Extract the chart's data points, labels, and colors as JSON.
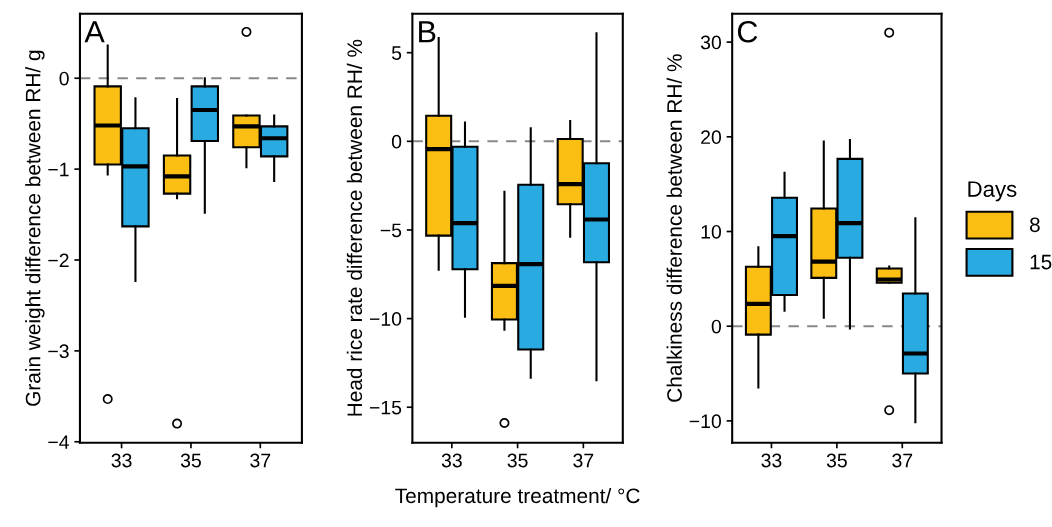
{
  "chart_data": [
    {
      "type": "box",
      "categories": [
        "33",
        "35",
        "37"
      ],
      "ylabel": "Grain weight difference between RH/ g",
      "ylim": [
        -4.01,
        0.71
      ],
      "yticks": [
        -4,
        -3,
        -2,
        -1,
        0
      ],
      "grid": false,
      "annotations": [
        "A"
      ],
      "ref_lines": [
        {
          "axis": "y",
          "value": 0,
          "color": "#888888",
          "line_style": "dashed"
        }
      ],
      "series": [
        {
          "color": "#fbbf13",
          "boxes": [
            {
              "low": -1.06,
              "q1": -0.95,
              "median": -0.52,
              "q3": -0.09,
              "high": 0.36,
              "outliers": [
                -3.53
              ]
            },
            {
              "low": -1.32,
              "q1": -1.27,
              "median": -1.08,
              "q3": -0.85,
              "high": -0.23,
              "outliers": [
                -3.8
              ]
            },
            {
              "low": -0.98,
              "q1": -0.76,
              "median": -0.53,
              "q3": -0.41,
              "high": -0.41,
              "outliers": [
                0.51
              ]
            }
          ]
        },
        {
          "color": "#29abe2",
          "boxes": [
            {
              "low": -2.23,
              "q1": -1.63,
              "median": -0.97,
              "q3": -0.55,
              "high": -0.22
            },
            {
              "low": -1.48,
              "q1": -0.69,
              "median": -0.35,
              "q3": -0.09,
              "high": 0.0
            },
            {
              "low": -1.13,
              "q1": -0.86,
              "median": -0.66,
              "q3": -0.53,
              "high": -0.41
            }
          ]
        }
      ]
    },
    {
      "type": "box",
      "categories": [
        "33",
        "35",
        "37"
      ],
      "xlabel": "Temperature treatment/ °C",
      "ylabel": "Head rice rate difference between RH/ %",
      "ylim": [
        -17,
        7.2
      ],
      "yticks": [
        -15,
        -10,
        -5,
        0,
        5
      ],
      "grid": false,
      "annotations": [
        "B"
      ],
      "ref_lines": [
        {
          "axis": "y",
          "value": 0,
          "color": "#888888",
          "line_style": "dashed"
        }
      ],
      "series": [
        {
          "color": "#fbbf13",
          "boxes": [
            {
              "low": -7.24,
              "q1": -5.32,
              "median": -0.44,
              "q3": 1.44,
              "high": 5.83
            },
            {
              "low": -10.62,
              "q1": -10.05,
              "median": -8.15,
              "q3": -6.87,
              "high": -2.85,
              "outliers": [
                -15.89
              ]
            },
            {
              "low": -5.38,
              "q1": -3.55,
              "median": -2.41,
              "q3": 0.13,
              "high": 1.15
            }
          ]
        },
        {
          "color": "#29abe2",
          "boxes": [
            {
              "low": -9.89,
              "q1": -7.22,
              "median": -4.61,
              "q3": -0.31,
              "high": 1.06
            },
            {
              "low": -13.33,
              "q1": -11.74,
              "median": -6.93,
              "q3": -2.45,
              "high": 0.73
            },
            {
              "low": -13.47,
              "q1": -6.82,
              "median": -4.41,
              "q3": -1.24,
              "high": 6.1
            }
          ]
        }
      ]
    },
    {
      "type": "box",
      "categories": [
        "33",
        "35",
        "37"
      ],
      "ylabel": "Chalkiness difference between RH/ %",
      "ylim": [
        -12.3,
        33.0
      ],
      "yticks": [
        -10,
        0,
        10,
        20,
        30
      ],
      "grid": false,
      "annotations": [
        "C"
      ],
      "legend": "right",
      "legend_title": "Days",
      "ref_lines": [
        {
          "axis": "y",
          "value": 0,
          "color": "#888888",
          "line_style": "dashed"
        }
      ],
      "series": [
        {
          "name": "8",
          "color": "#fbbf13",
          "boxes": [
            {
              "low": -6.47,
              "q1": -0.89,
              "median": 2.36,
              "q3": 6.27,
              "high": 8.32
            },
            {
              "low": 0.89,
              "q1": 5.1,
              "median": 6.82,
              "q3": 12.43,
              "high": 19.5
            },
            {
              "low": 4.59,
              "q1": 4.59,
              "median": 4.93,
              "q3": 6.1,
              "high": 6.3,
              "outliers": [
                31.0,
                -8.87
              ]
            }
          ]
        },
        {
          "name": "15",
          "color": "#29abe2",
          "boxes": [
            {
              "low": 1.64,
              "q1": 3.29,
              "median": 9.52,
              "q3": 13.56,
              "high": 16.2
            },
            {
              "low": -0.24,
              "q1": 7.23,
              "median": 10.89,
              "q3": 17.67,
              "high": 19.66
            },
            {
              "low": -10.14,
              "q1": -5.0,
              "median": -2.88,
              "q3": 3.46,
              "high": 11.4
            }
          ]
        }
      ]
    }
  ]
}
